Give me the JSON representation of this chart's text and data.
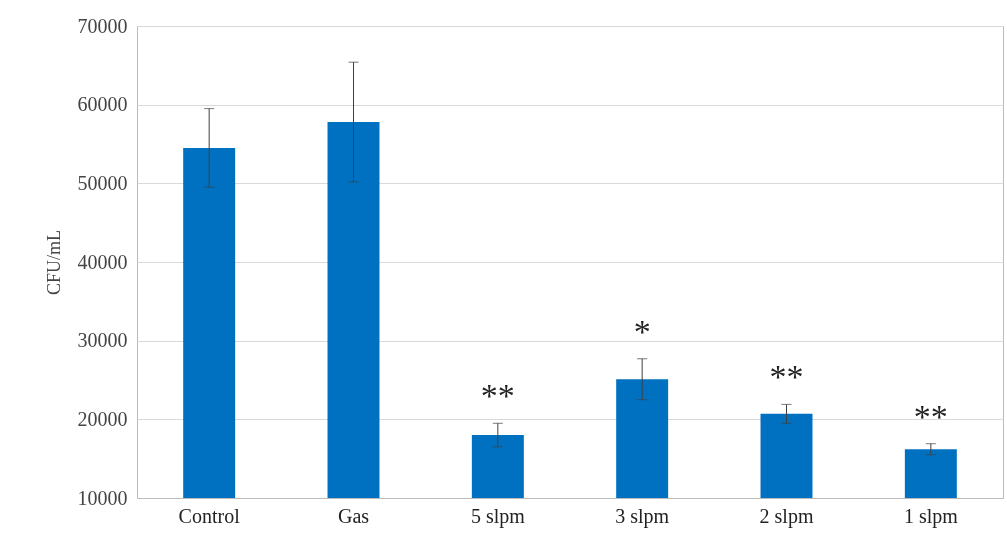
{
  "chart_data": {
    "type": "bar",
    "ylabel": "CFU/mL",
    "categories": [
      "Control",
      "Gas",
      "5 slpm",
      "3 slpm",
      "2 slpm",
      "1 slpm"
    ],
    "values": [
      54500,
      57800,
      18000,
      25100,
      20700,
      16200
    ],
    "errors": [
      5000,
      7600,
      1500,
      2600,
      1200,
      700
    ],
    "color": "#0070c0",
    "ylim": [
      10000,
      70000
    ],
    "yticks": [
      10000,
      20000,
      30000,
      40000,
      50000,
      60000,
      70000
    ],
    "grid": "y",
    "annotations": [
      {
        "text": "**",
        "x": "5 slpm",
        "y": 19500
      },
      {
        "text": "*",
        "x": "3 slpm",
        "y": 27700
      },
      {
        "text": "**",
        "x": "2 slpm",
        "y": 21900
      },
      {
        "text": "**",
        "x": "1 slpm",
        "y": 16900
      }
    ]
  }
}
